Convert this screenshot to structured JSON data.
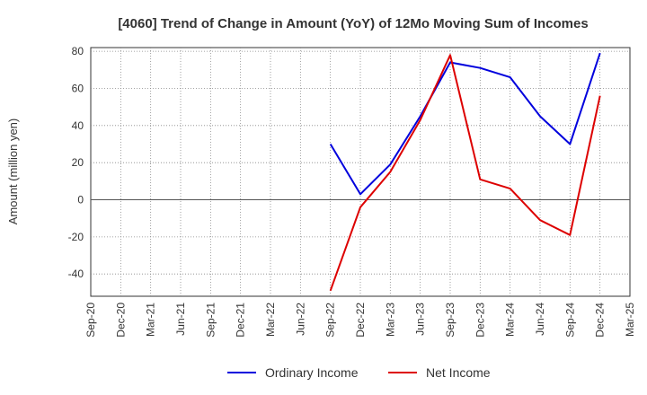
{
  "chart_data": {
    "type": "line",
    "title": "[4060]  Trend of Change in Amount (YoY) of 12Mo Moving Sum of Incomes",
    "ylabel": "Amount (million yen)",
    "xlabel": "",
    "ylim": [
      -52,
      82
    ],
    "yticks": [
      -40,
      -20,
      0,
      20,
      40,
      60,
      80
    ],
    "categories": [
      "Sep-20",
      "Dec-20",
      "Mar-21",
      "Jun-21",
      "Sep-21",
      "Dec-21",
      "Mar-22",
      "Jun-22",
      "Sep-22",
      "Dec-22",
      "Mar-23",
      "Jun-23",
      "Sep-23",
      "Dec-23",
      "Mar-24",
      "Jun-24",
      "Sep-24",
      "Dec-24",
      "Mar-25"
    ],
    "grid": true,
    "legend_position": "bottom",
    "series": [
      {
        "name": "Ordinary Income",
        "color": "#0000dd",
        "values": [
          null,
          null,
          null,
          null,
          null,
          null,
          null,
          null,
          30,
          3,
          19,
          45,
          74,
          71,
          66,
          45,
          30,
          79,
          null
        ]
      },
      {
        "name": "Net Income",
        "color": "#dd0000",
        "values": [
          null,
          null,
          null,
          null,
          null,
          null,
          null,
          null,
          -49,
          -4,
          15,
          43,
          78,
          11,
          6,
          -11,
          -19,
          56,
          null
        ]
      }
    ]
  }
}
